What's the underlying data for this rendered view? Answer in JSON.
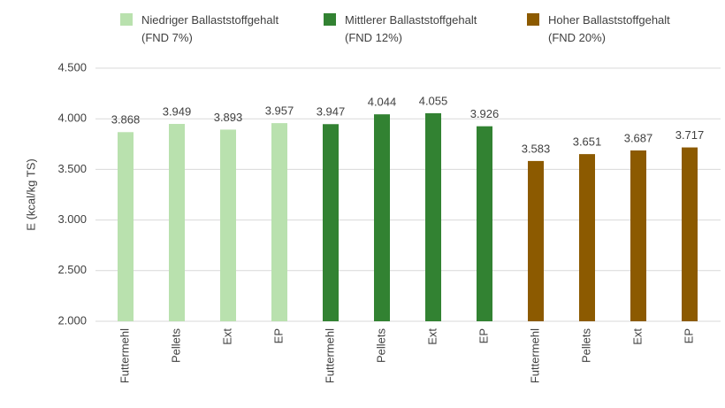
{
  "chart_data": {
    "type": "bar",
    "y_label": "E (kcal/kg TS)",
    "categories": [
      "Futtermehl",
      "Pellets",
      "Ext",
      "EP",
      "Futtermehl",
      "Pellets",
      "Ext",
      "EP",
      "Futtermehl",
      "Pellets",
      "Ext",
      "EP"
    ],
    "series": [
      {
        "name": "Niedriger Ballaststoffgehalt\n(FND 7%)",
        "color": "#b9e1ae",
        "values": [
          3868,
          3949,
          3893,
          3957,
          null,
          null,
          null,
          null,
          null,
          null,
          null,
          null
        ],
        "value_labels": [
          "3.868",
          "3.949",
          "3.893",
          "3.957",
          null,
          null,
          null,
          null,
          null,
          null,
          null,
          null
        ]
      },
      {
        "name": "Mittlerer Ballaststoffgehalt\n(FND 12%)",
        "color": "#328232",
        "values": [
          null,
          null,
          null,
          null,
          3947,
          4044,
          4055,
          3926,
          null,
          null,
          null,
          null
        ],
        "value_labels": [
          null,
          null,
          null,
          null,
          "3.947",
          "4.044",
          "4.055",
          "3.926",
          null,
          null,
          null,
          null
        ]
      },
      {
        "name": "Hoher Ballaststoffgehalt\n(FND 20%)",
        "color": "#8c5a00",
        "values": [
          null,
          null,
          null,
          null,
          null,
          null,
          null,
          null,
          3583,
          3651,
          3687,
          3717
        ],
        "value_labels": [
          null,
          null,
          null,
          null,
          null,
          null,
          null,
          null,
          "3.583",
          "3.651",
          "3.687",
          "3.717"
        ]
      }
    ],
    "ylim": [
      2000,
      4500
    ],
    "yticks": [
      {
        "value": 2000,
        "label": "2.000"
      },
      {
        "value": 2500,
        "label": "2.500"
      },
      {
        "value": 3000,
        "label": "3.000"
      },
      {
        "value": 3500,
        "label": "3.500"
      },
      {
        "value": 4000,
        "label": "4.000"
      },
      {
        "value": 4500,
        "label": "4.500"
      }
    ],
    "grid": true,
    "legend": "top"
  }
}
